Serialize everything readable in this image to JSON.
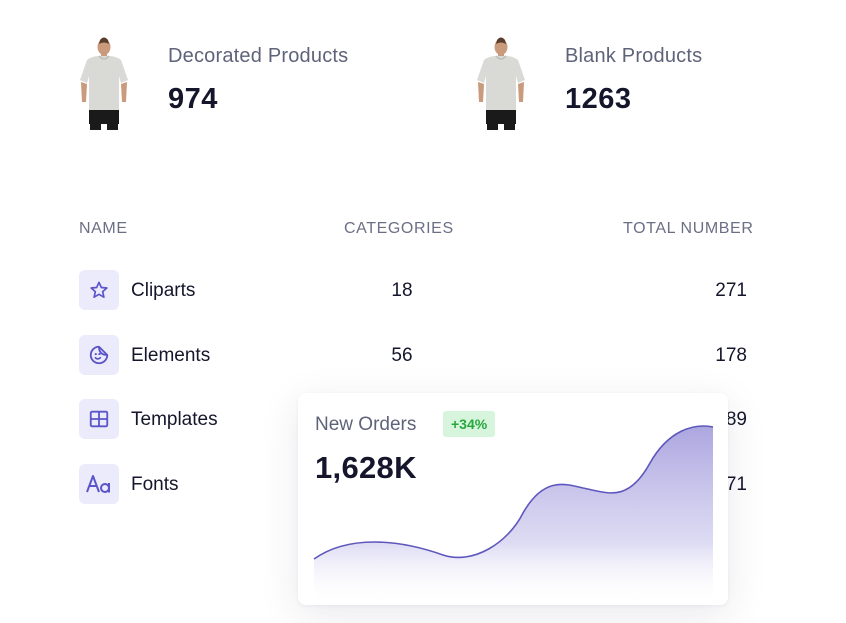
{
  "stats": [
    {
      "label": "Decorated Products",
      "value": "974",
      "icon": "tshirt-icon"
    },
    {
      "label": "Blank Products",
      "value": "1263",
      "icon": "tshirt-icon"
    }
  ],
  "table": {
    "headers": {
      "name": "NAME",
      "categories": "CATEGORIES",
      "total": "TOTAL NUMBER"
    },
    "rows": [
      {
        "name": "Cliparts",
        "categories": "18",
        "total": "271",
        "icon": "star-icon"
      },
      {
        "name": "Elements",
        "categories": "56",
        "total": "178",
        "icon": "sticker-icon"
      },
      {
        "name": "Templates",
        "categories": "",
        "total": "89",
        "icon": "grid-icon"
      },
      {
        "name": "Fonts",
        "categories": "",
        "total": "71",
        "icon": "font-icon"
      }
    ]
  },
  "orders_card": {
    "title": "New Orders",
    "badge": "+34%",
    "value": "1,628K"
  },
  "colors": {
    "accent": "#5b55c9",
    "icon_bg": "#ebebfb",
    "badge_bg": "#d6f5dc",
    "badge_text": "#27a83d"
  }
}
